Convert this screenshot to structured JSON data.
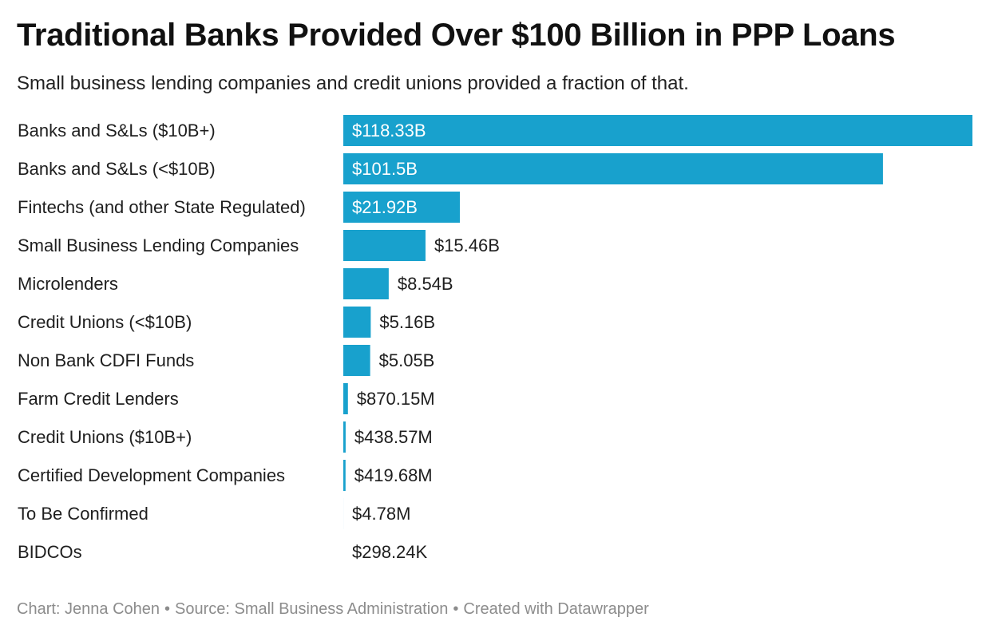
{
  "chart_data": {
    "type": "bar",
    "orientation": "horizontal",
    "title": "Traditional Banks Provided Over $100 Billion in PPP Loans",
    "subtitle": "Small business lending companies and credit unions provided a fraction of that.",
    "categories": [
      "Banks and S&Ls ($10B+)",
      "Banks and S&Ls (<$10B)",
      "Fintechs (and other State Regulated)",
      "Small Business Lending Companies",
      "Microlenders",
      "Credit Unions (<$10B)",
      "Non Bank CDFI Funds",
      "Farm Credit Lenders",
      "Credit Unions ($10B+)",
      "Certified Development Companies",
      "To Be Confirmed",
      "BIDCOs"
    ],
    "values": [
      118.33,
      101.5,
      21.92,
      15.46,
      8.54,
      5.16,
      5.05,
      0.87015,
      0.43857,
      0.41968,
      0.00478,
      0.00029824
    ],
    "value_labels": [
      "$118.33B",
      "$101.5B",
      "$21.92B",
      "$15.46B",
      "$8.54B",
      "$5.16B",
      "$5.05B",
      "$870.15M",
      "$438.57M",
      "$419.68M",
      "$4.78M",
      "$298.24K"
    ],
    "unit": "billion USD",
    "xlim": [
      0,
      118.33
    ],
    "grid": false,
    "bar_color": "#18a1cd"
  },
  "footer": {
    "chart_credit": "Chart: Jenna Cohen",
    "source": "Source: Small Business Administration",
    "created_with": "Created with Datawrapper",
    "separator": "•"
  }
}
